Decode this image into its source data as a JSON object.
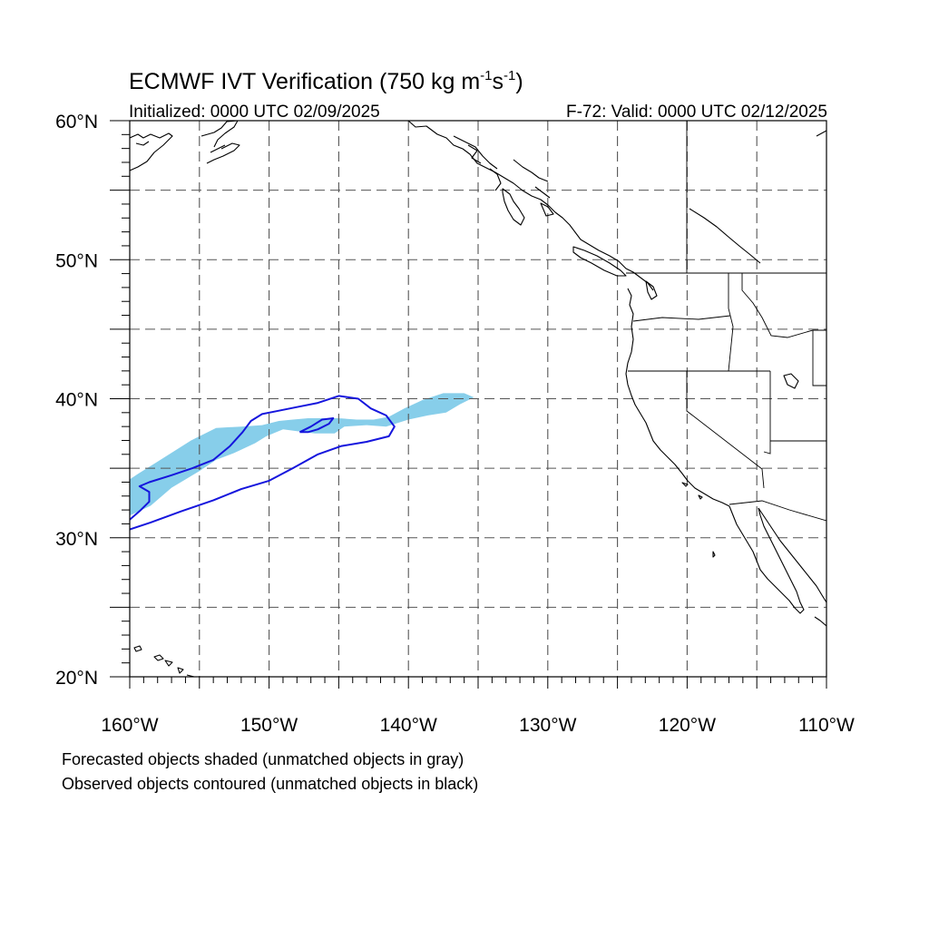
{
  "title": {
    "main": "ECMWF IVT Verification (750 kg m",
    "unit_exp1": "-1",
    "unit_mid": "s",
    "unit_exp2": "-1",
    "unit_close": ")"
  },
  "subtitle": {
    "left": "Initialized: 0000 UTC 02/09/2025",
    "right": "F-72: Valid: 0000 UTC 02/12/2025"
  },
  "map": {
    "projection": "cylindrical-equidistant",
    "lon_range": [
      -160,
      -110
    ],
    "lat_range": [
      20,
      60
    ],
    "grid_lines": true,
    "grid_spacing_deg": 5,
    "lat_labels": [
      "60°N",
      "50°N",
      "40°N",
      "30°N",
      "20°N"
    ],
    "lon_labels": [
      "160°W",
      "150°W",
      "140°W",
      "130°W",
      "120°W",
      "110°W"
    ],
    "forecast_color": "#87ceea",
    "observed_color": "#1515dd",
    "forecast_objects": [
      {
        "name": "matched forecast object",
        "polygon_lonlat": [
          [
            -160,
            31.6
          ],
          [
            -158.5,
            32.3
          ],
          [
            -157,
            33.6
          ],
          [
            -155,
            34.8
          ],
          [
            -153.8,
            35.6
          ],
          [
            -152.5,
            36.1
          ],
          [
            -151,
            36.8
          ],
          [
            -150.2,
            37.3
          ],
          [
            -149,
            37.8
          ],
          [
            -147.5,
            37.6
          ],
          [
            -146.7,
            37.5
          ],
          [
            -145.3,
            37.5
          ],
          [
            -144.6,
            38.0
          ],
          [
            -143,
            38.1
          ],
          [
            -141.6,
            38.0
          ],
          [
            -140,
            38.5
          ],
          [
            -138.6,
            38.8
          ],
          [
            -137.3,
            39.0
          ],
          [
            -136.3,
            39.6
          ],
          [
            -135.5,
            40.0
          ],
          [
            -135.3,
            40.1
          ],
          [
            -136.0,
            40.4
          ],
          [
            -137.5,
            40.4
          ],
          [
            -139.0,
            39.9
          ],
          [
            -140.3,
            39.3
          ],
          [
            -141.4,
            38.7
          ],
          [
            -142.5,
            38.5
          ],
          [
            -143.7,
            38.5
          ],
          [
            -145.0,
            38.6
          ],
          [
            -146.0,
            38.6
          ],
          [
            -147.2,
            38.6
          ],
          [
            -148.3,
            38.5
          ],
          [
            -149.3,
            38.4
          ],
          [
            -150.5,
            38.1
          ],
          [
            -152.0,
            38.0
          ],
          [
            -153.8,
            37.9
          ],
          [
            -155.6,
            37.0
          ],
          [
            -157.8,
            35.6
          ],
          [
            -159.4,
            34.6
          ],
          [
            -160,
            34.2
          ]
        ]
      }
    ],
    "observed_objects": [
      {
        "name": "matched observed object",
        "polyline_lonlat": [
          [
            -160,
            31.3
          ],
          [
            -159.2,
            32.0
          ],
          [
            -158.6,
            32.6
          ],
          [
            -158.6,
            33.3
          ],
          [
            -159.3,
            33.7
          ],
          [
            -158.6,
            34.0
          ],
          [
            -157,
            34.5
          ],
          [
            -155.5,
            35.0
          ],
          [
            -154.0,
            35.6
          ],
          [
            -152.8,
            36.6
          ],
          [
            -151.9,
            37.6
          ],
          [
            -151.3,
            38.4
          ],
          [
            -150.5,
            38.9
          ],
          [
            -149.5,
            39.1
          ],
          [
            -148.0,
            39.4
          ],
          [
            -146.5,
            39.7
          ],
          [
            -145.0,
            40.2
          ],
          [
            -143.6,
            40.0
          ],
          [
            -142.7,
            39.3
          ],
          [
            -141.6,
            38.8
          ],
          [
            -141.0,
            38.0
          ],
          [
            -141.4,
            37.3
          ],
          [
            -143.0,
            36.9
          ],
          [
            -144.8,
            36.6
          ],
          [
            -146.5,
            36.0
          ],
          [
            -148.3,
            35.0
          ],
          [
            -150.0,
            34.1
          ],
          [
            -152.0,
            33.5
          ],
          [
            -154.0,
            32.7
          ],
          [
            -156.3,
            31.9
          ],
          [
            -158.5,
            31.1
          ],
          [
            -160,
            30.6
          ]
        ]
      },
      {
        "name": "observed object inner ring",
        "polyline_lonlat": [
          [
            -147.8,
            37.6
          ],
          [
            -147.0,
            38.0
          ],
          [
            -146.2,
            38.5
          ],
          [
            -145.4,
            38.6
          ],
          [
            -145.7,
            38.2
          ],
          [
            -146.5,
            37.8
          ],
          [
            -147.2,
            37.6
          ],
          [
            -147.8,
            37.6
          ]
        ]
      }
    ]
  },
  "footnotes": {
    "line1": "Forecasted objects shaded (unmatched objects in gray)",
    "line2": "Observed objects contoured (unmatched objects in black)"
  }
}
